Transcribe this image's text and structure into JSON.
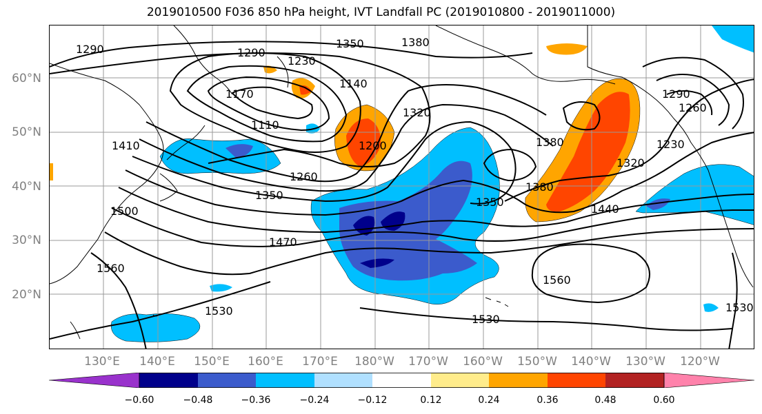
{
  "title": "2019010500 F036 850 hPa height, IVT Landfall PC (2019010800 - 2019011000)",
  "lat_labels": [
    "60°N",
    "50°N",
    "40°N",
    "30°N",
    "20°N"
  ],
  "lon_labels": [
    "130°E",
    "140°E",
    "150°E",
    "160°E",
    "170°E",
    "180°W",
    "170°W",
    "160°W",
    "150°W",
    "140°W",
    "130°W",
    "120°W"
  ],
  "contour_labels": [
    "1290",
    "1290",
    "1350",
    "1380",
    "1230",
    "1140",
    "1170",
    "1110",
    "1200",
    "1320",
    "1260",
    "1350",
    "1410",
    "1470",
    "1500",
    "1560",
    "1530",
    "1530",
    "1560",
    "1350",
    "1380",
    "1380",
    "1440",
    "1290",
    "1260",
    "1230",
    "1320",
    "1530"
  ],
  "colorbar": {
    "ticks": [
      "−0.60",
      "−0.48",
      "−0.36",
      "−0.24",
      "−0.12",
      "0.12",
      "0.24",
      "0.36",
      "0.48",
      "0.60"
    ],
    "colors": [
      "#9932cc",
      "#00008b",
      "#3b5bcc",
      "#00bfff",
      "#b0e0ff",
      "#ffffff",
      "#ffec8b",
      "#ffa500",
      "#ff4500",
      "#b22222",
      "#ff82ab"
    ]
  }
}
